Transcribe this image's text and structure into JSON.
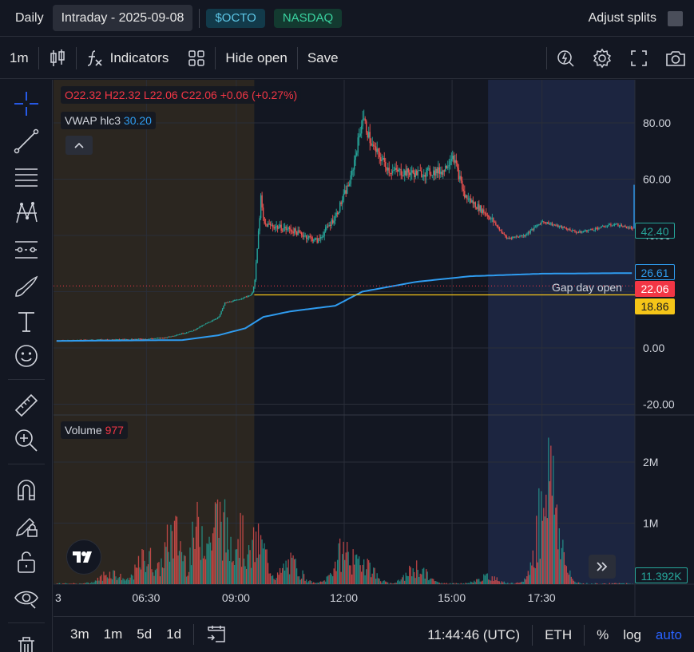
{
  "topbar": {
    "tabs": [
      {
        "label": "Daily"
      },
      {
        "label": "Intraday - 2025-09-08"
      }
    ],
    "ticker": "$OCTO",
    "exchange": "NASDAQ",
    "adjust_label": "Adjust splits"
  },
  "toolbar": {
    "interval": "1m",
    "indicators_label": "Indicators",
    "hide_open_label": "Hide open",
    "save_label": "Save",
    "left_icons": [
      "candles-icon",
      "fx-icon",
      "layout-grid-icon"
    ],
    "right_icons": [
      "replay-icon",
      "gear-icon",
      "fullscreen-icon",
      "camera-icon"
    ]
  },
  "sidebar": {
    "tools": [
      "crosshair-icon",
      "trend-line-icon",
      "fib-icon",
      "pattern-icon",
      "forecast-icon",
      "brush-icon",
      "text-icon",
      "emoji-icon",
      "ruler-icon",
      "zoom-in-icon",
      "magnet-icon",
      "lock-drawings-icon",
      "unlock-icon",
      "eye-icon",
      "trash-icon"
    ]
  },
  "legend": {
    "o_key": "O",
    "o_val": "22.32",
    "h_key": "H",
    "h_val": "22.32",
    "l_key": "L",
    "l_val": "22.06",
    "c_key": "C",
    "c_val": "22.06",
    "change": "+0.06 (+0.27%)",
    "vwap_label": "VWAP hlc3",
    "vwap_value": "30.20",
    "volume_label": "Volume",
    "volume_value": "977"
  },
  "price_tags": {
    "last": "42.40",
    "vwap": "26.61",
    "close": "22.06",
    "gap": "18.86",
    "volume": "11.392K"
  },
  "gap_label": "Gap day open",
  "colors": {
    "up": "#26a69a",
    "down": "#ef5350",
    "vwap": "#2f9cf0",
    "gap_line": "#f5c518",
    "premarket_bg": "#2b2620",
    "afterhours_bg": "#1c2540",
    "accent": "#2962ff"
  },
  "chart_data": {
    "type": "candlestick",
    "timeframe": "1m",
    "price_axis": {
      "ticks": [
        "80.00",
        "60.00",
        "40.00",
        "0.00",
        "-20.00"
      ],
      "range": [
        -20,
        90
      ]
    },
    "volume_axis": {
      "ticks": [
        "2M",
        "1M"
      ],
      "range": [
        0,
        2600000
      ]
    },
    "time_axis": {
      "ticks": [
        "3",
        "06:30",
        "09:00",
        "12:00",
        "15:00",
        "17:30"
      ]
    },
    "sessions": {
      "premarket_until": "09:30",
      "afterhours_from": "16:00"
    },
    "price_path": [
      {
        "t": "04:00",
        "p": 2.6
      },
      {
        "t": "05:00",
        "p": 2.8
      },
      {
        "t": "06:30",
        "p": 3.2
      },
      {
        "t": "07:00",
        "p": 3.6
      },
      {
        "t": "07:45",
        "p": 6.0
      },
      {
        "t": "08:30",
        "p": 11
      },
      {
        "t": "08:40",
        "p": 16
      },
      {
        "t": "09:00",
        "p": 17
      },
      {
        "t": "09:25",
        "p": 19
      },
      {
        "t": "09:30",
        "p": 24
      },
      {
        "t": "09:35",
        "p": 38
      },
      {
        "t": "09:40",
        "p": 53
      },
      {
        "t": "09:45",
        "p": 44
      },
      {
        "t": "10:30",
        "p": 42
      },
      {
        "t": "11:15",
        "p": 38
      },
      {
        "t": "11:45",
        "p": 47
      },
      {
        "t": "12:10",
        "p": 60
      },
      {
        "t": "12:30",
        "p": 82
      },
      {
        "t": "12:45",
        "p": 72
      },
      {
        "t": "13:15",
        "p": 63
      },
      {
        "t": "14:00",
        "p": 62
      },
      {
        "t": "14:45",
        "p": 63
      },
      {
        "t": "15:00",
        "p": 69
      },
      {
        "t": "15:20",
        "p": 54
      },
      {
        "t": "16:00",
        "p": 47
      },
      {
        "t": "16:30",
        "p": 39
      },
      {
        "t": "17:00",
        "p": 40
      },
      {
        "t": "17:30",
        "p": 45
      },
      {
        "t": "18:30",
        "p": 41
      },
      {
        "t": "19:30",
        "p": 44
      },
      {
        "t": "20:00",
        "p": 42.4
      }
    ],
    "vwap_path": [
      {
        "t": "04:00",
        "p": 2.5
      },
      {
        "t": "07:30",
        "p": 2.8
      },
      {
        "t": "08:30",
        "p": 4.5
      },
      {
        "t": "09:15",
        "p": 7
      },
      {
        "t": "09:45",
        "p": 11
      },
      {
        "t": "10:30",
        "p": 13
      },
      {
        "t": "11:45",
        "p": 15
      },
      {
        "t": "12:30",
        "p": 20
      },
      {
        "t": "14:00",
        "p": 23.5
      },
      {
        "t": "15:30",
        "p": 25.5
      },
      {
        "t": "17:30",
        "p": 26.4
      },
      {
        "t": "20:00",
        "p": 26.61
      }
    ],
    "gap_day_open": 18.86,
    "last_close": 22.06,
    "volume_spikes": [
      {
        "t": "05:30",
        "v": 250000
      },
      {
        "t": "06:30",
        "v": 600000
      },
      {
        "t": "07:15",
        "v": 1100000
      },
      {
        "t": "08:00",
        "v": 1300000
      },
      {
        "t": "08:30",
        "v": 1500000
      },
      {
        "t": "09:00",
        "v": 1200000
      },
      {
        "t": "09:35",
        "v": 900000
      },
      {
        "t": "10:30",
        "v": 450000
      },
      {
        "t": "12:00",
        "v": 750000
      },
      {
        "t": "12:30",
        "v": 550000
      },
      {
        "t": "14:00",
        "v": 350000
      },
      {
        "t": "16:00",
        "v": 150000
      },
      {
        "t": "17:40",
        "v": 2400000
      }
    ]
  },
  "bottombar": {
    "ranges": [
      "3m",
      "1m",
      "5d",
      "1d"
    ],
    "clock": "11:44:46 (UTC)",
    "session": "ETH",
    "percent": "%",
    "log": "log",
    "auto": "auto"
  }
}
